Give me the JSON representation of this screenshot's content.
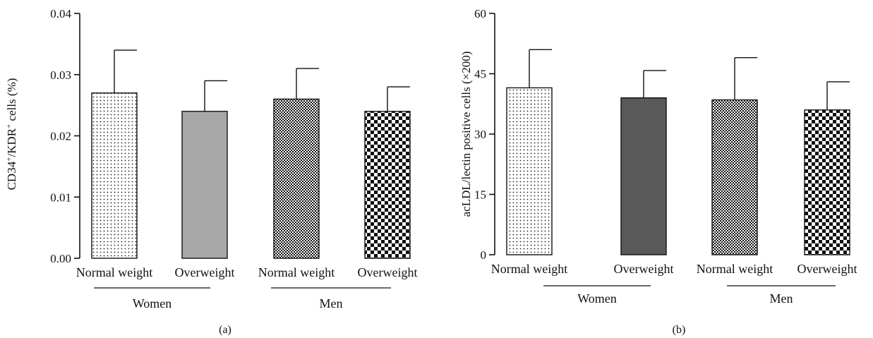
{
  "chart_data": [
    {
      "type": "bar",
      "panel_label": "(a)",
      "ylabel_parts": [
        "CD34",
        "+",
        "/KDR",
        "+",
        " cells (%)"
      ],
      "ylim": [
        0,
        0.04
      ],
      "yticks": [
        "0.00",
        "0.01",
        "0.02",
        "0.03",
        "0.04"
      ],
      "categories": [
        "Normal weight",
        "Overweight",
        "Normal weight",
        "Overweight"
      ],
      "groups": [
        {
          "label": "Women",
          "categories": [
            0,
            1
          ]
        },
        {
          "label": "Men",
          "categories": [
            2,
            3
          ]
        }
      ],
      "values": [
        0.027,
        0.024,
        0.026,
        0.024
      ],
      "errors": [
        0.007,
        0.005,
        0.005,
        0.004
      ],
      "fills": [
        "dots",
        "gray",
        "crosshatch",
        "checker"
      ]
    },
    {
      "type": "bar",
      "panel_label": "(b)",
      "ylabel": "acLDL/lectin positive cells (×200)",
      "ylim": [
        0,
        60
      ],
      "yticks": [
        "0",
        "15",
        "30",
        "45",
        "60"
      ],
      "categories": [
        "Normal weight",
        "Overweight",
        "Normal weight",
        "Overweight"
      ],
      "groups": [
        {
          "label": "Women",
          "categories": [
            0,
            1
          ]
        },
        {
          "label": "Men",
          "categories": [
            2,
            3
          ]
        }
      ],
      "values": [
        41.5,
        39,
        38.5,
        36
      ],
      "errors": [
        9.5,
        6.8,
        10.5,
        7
      ],
      "fills": [
        "dots",
        "darkgray",
        "crosshatch",
        "checker"
      ]
    }
  ],
  "colors": {
    "gray": "#a8a8a8",
    "darkgray": "#5a5a5a",
    "ink": "#111111"
  }
}
